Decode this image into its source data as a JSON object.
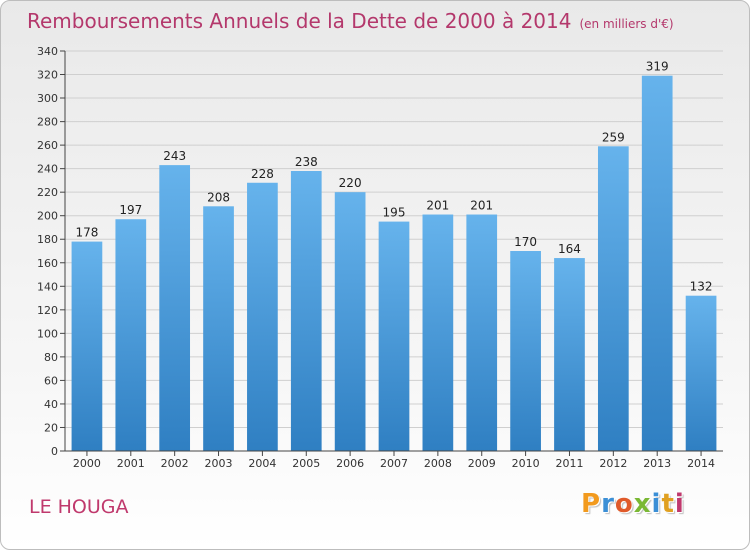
{
  "header": {
    "title": "Remboursements Annuels de la Dette de 2000 à 2014",
    "unit": "(en milliers d'€)"
  },
  "footer": {
    "commune": "LE HOUGA",
    "logo_letters": [
      "P",
      "r",
      "o",
      "x",
      "i",
      "t",
      "i"
    ],
    "logo_colors": [
      "#f29a1e",
      "#3b8fd6",
      "#e05a2a",
      "#7ab834",
      "#3b8fd6",
      "#e0a020",
      "#c0396d"
    ]
  },
  "chart_data": {
    "type": "bar",
    "title": "Remboursements Annuels de la Dette de 2000 à 2014",
    "xlabel": "",
    "ylabel": "",
    "ylim": [
      0,
      340
    ],
    "ytick_step": 20,
    "grid": true,
    "categories": [
      "2000",
      "2001",
      "2002",
      "2003",
      "2004",
      "2005",
      "2006",
      "2007",
      "2008",
      "2009",
      "2010",
      "2011",
      "2012",
      "2013",
      "2014"
    ],
    "values": [
      178,
      197,
      243,
      208,
      228,
      238,
      220,
      195,
      201,
      201,
      170,
      164,
      259,
      319,
      132
    ],
    "bar_color_top": "#66b3ec",
    "bar_color_bottom": "#2f7fc2",
    "grid_color": "#cfcfcf",
    "axis_color": "#444444"
  }
}
